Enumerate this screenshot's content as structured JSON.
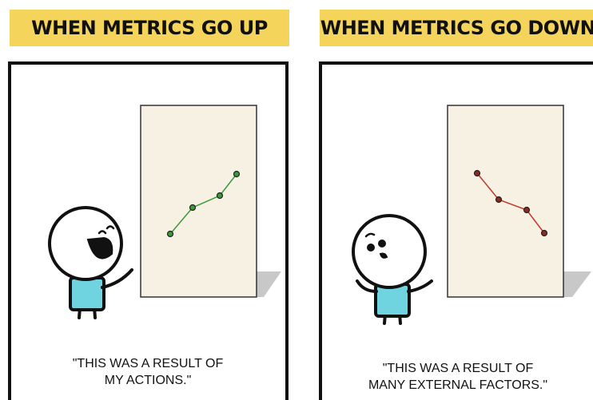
{
  "panels": [
    {
      "header": "WHEN METRICS GO UP",
      "caption": [
        "\"THIS WAS A RESULT OF",
        "MY ACTIONS.\""
      ]
    },
    {
      "header": "WHEN METRICS GO DOWN",
      "caption": [
        "\"THIS WAS A RESULT OF",
        "MANY EXTERNAL FACTORS.\""
      ]
    }
  ]
}
